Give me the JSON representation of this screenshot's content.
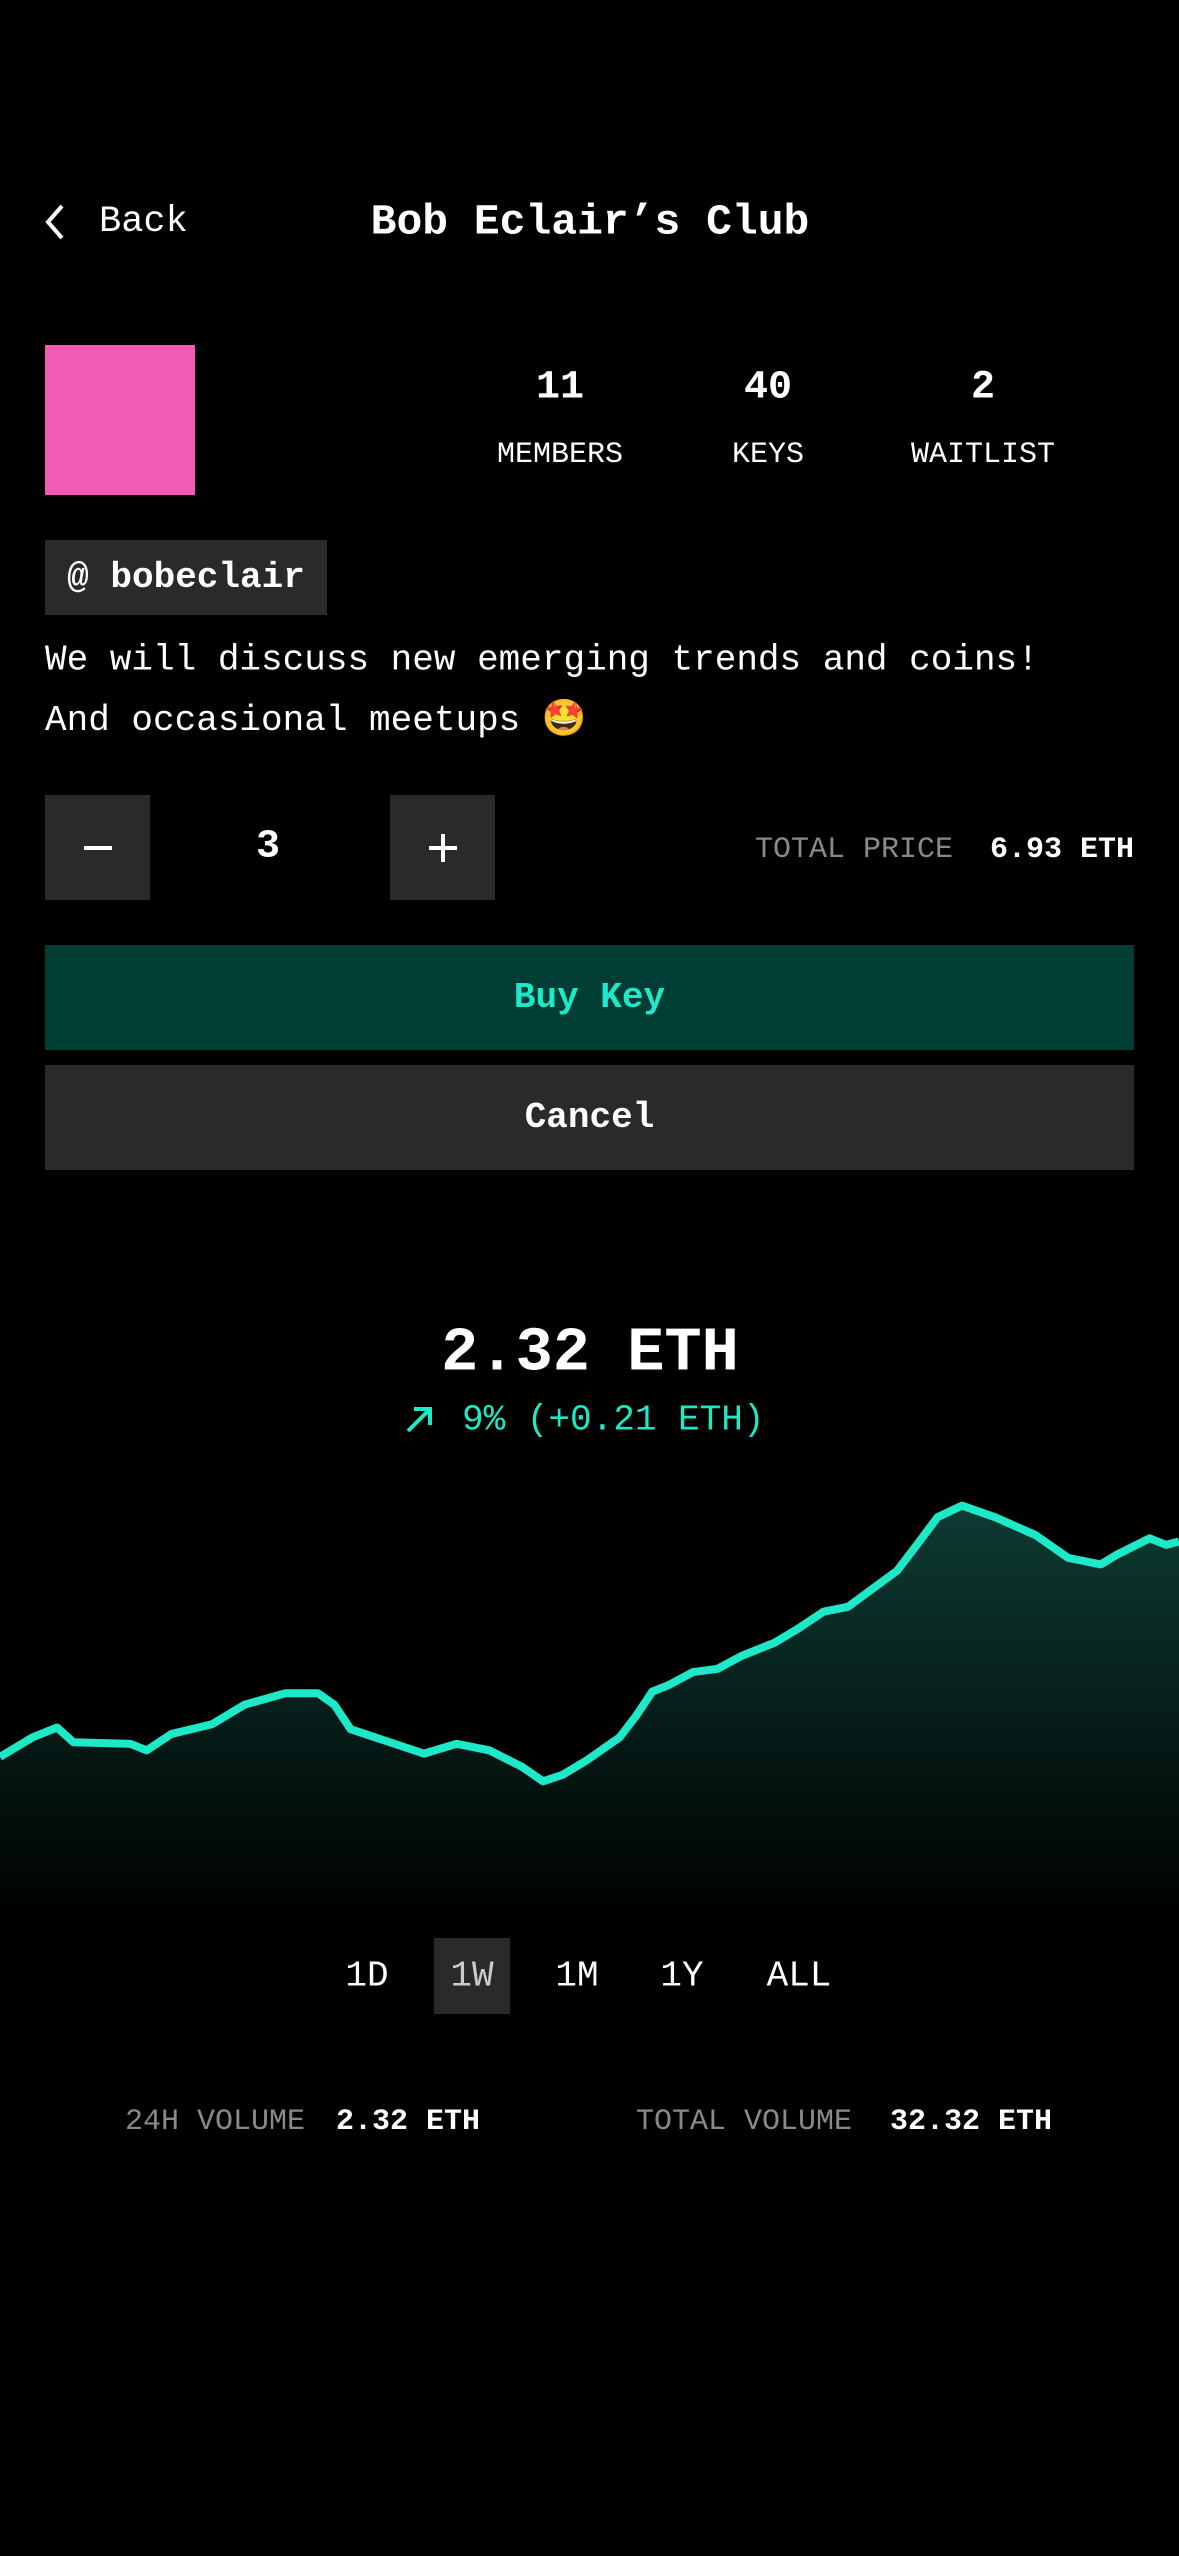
{
  "header": {
    "back": "Back",
    "title": "Bob Eclair’s Club"
  },
  "stats": [
    {
      "value": 11,
      "label": "MEMBERS"
    },
    {
      "value": 40,
      "label": "KEYS"
    },
    {
      "value": 2,
      "label": "WAITLIST"
    }
  ],
  "handle": "@ bobeclair",
  "description": [
    "We will discuss new emerging trends and coins!",
    "And occasional meetups 🤩"
  ],
  "quantity": 3,
  "total_price": {
    "label": "TOTAL PRICE",
    "value": "6.93 ETH"
  },
  "buttons": {
    "buy": "Buy Key",
    "cancel": "Cancel"
  },
  "price": {
    "value": "2.32 ETH",
    "change": "9% (+0.21 ETH)"
  },
  "ranges": {
    "options": [
      "1D",
      "1W",
      "1M",
      "1Y",
      "ALL"
    ],
    "selected": 1
  },
  "volumes": [
    {
      "label": "24H VOLUME",
      "value": "2.32 ETH"
    },
    {
      "label": "TOTAL VOLUME",
      "value": "32.32 ETH"
    }
  ]
}
